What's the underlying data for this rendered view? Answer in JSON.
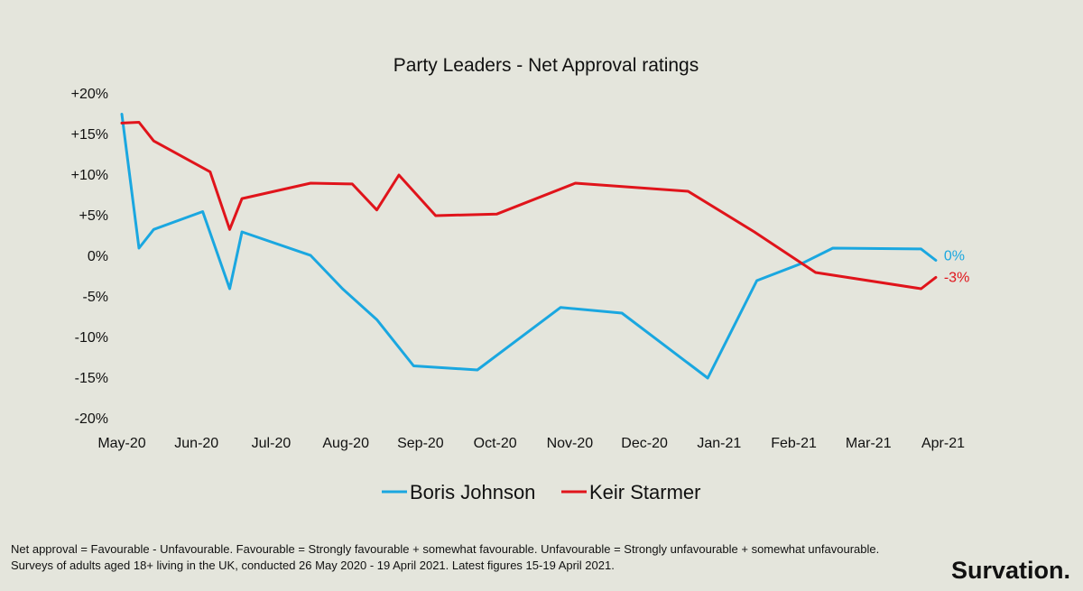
{
  "chart_data": {
    "type": "line",
    "title": "Party Leaders - Net Approval ratings",
    "x_ticks": [
      "May-20",
      "Jun-20",
      "Jul-20",
      "Aug-20",
      "Sep-20",
      "Oct-20",
      "Nov-20",
      "Dec-20",
      "Jan-21",
      "Feb-21",
      "Mar-21",
      "Apr-21"
    ],
    "y_ticks": [
      "+20%",
      "+15%",
      "+10%",
      "+5%",
      "0%",
      "-5%",
      "-10%",
      "-15%",
      "-20%"
    ],
    "ylim": [
      -20,
      20
    ],
    "grid": false,
    "legend_position": "bottom",
    "series": [
      {
        "name": "Boris Johnson",
        "color": "#1aa7e0",
        "end_label": "0%",
        "points": [
          {
            "x": "2020-05-01",
            "y": 17.5
          },
          {
            "x": "2020-05-08",
            "y": 1
          },
          {
            "x": "2020-05-14",
            "y": 3.3
          },
          {
            "x": "2020-06-03",
            "y": 5.5
          },
          {
            "x": "2020-06-14",
            "y": -4
          },
          {
            "x": "2020-06-19",
            "y": 3
          },
          {
            "x": "2020-07-17",
            "y": 0.1
          },
          {
            "x": "2020-07-30",
            "y": -4
          },
          {
            "x": "2020-08-13",
            "y": -7.8
          },
          {
            "x": "2020-08-28",
            "y": -13.5
          },
          {
            "x": "2020-09-23",
            "y": -14
          },
          {
            "x": "2020-10-27",
            "y": -6.3
          },
          {
            "x": "2020-11-21",
            "y": -7
          },
          {
            "x": "2020-12-26",
            "y": -15
          },
          {
            "x": "2021-01-15",
            "y": -3
          },
          {
            "x": "2021-02-03",
            "y": -0.8
          },
          {
            "x": "2021-02-15",
            "y": 1
          },
          {
            "x": "2021-03-23",
            "y": 0.9
          },
          {
            "x": "2021-03-29",
            "y": -0.5
          }
        ]
      },
      {
        "name": "Keir Starmer",
        "color": "#e0141b",
        "end_label": "-3%",
        "points": [
          {
            "x": "2020-05-01",
            "y": 16.4
          },
          {
            "x": "2020-05-08",
            "y": 16.5
          },
          {
            "x": "2020-05-14",
            "y": 14.2
          },
          {
            "x": "2020-06-06",
            "y": 10.4
          },
          {
            "x": "2020-06-14",
            "y": 3.3
          },
          {
            "x": "2020-06-19",
            "y": 7.1
          },
          {
            "x": "2020-07-17",
            "y": 9
          },
          {
            "x": "2020-08-03",
            "y": 8.9
          },
          {
            "x": "2020-08-13",
            "y": 5.7
          },
          {
            "x": "2020-08-22",
            "y": 10
          },
          {
            "x": "2020-09-06",
            "y": 5
          },
          {
            "x": "2020-10-01",
            "y": 5.2
          },
          {
            "x": "2020-11-02",
            "y": 9
          },
          {
            "x": "2020-12-18",
            "y": 8
          },
          {
            "x": "2021-01-14",
            "y": 3
          },
          {
            "x": "2021-02-08",
            "y": -2
          },
          {
            "x": "2021-03-23",
            "y": -4
          },
          {
            "x": "2021-03-29",
            "y": -2.6
          }
        ]
      }
    ]
  },
  "footnote": {
    "line1": "Net approval = Favourable - Unfavourable. Favourable = Strongly favourable + somewhat favourable. Unfavourable = Strongly unfavourable + somewhat unfavourable.",
    "line2": "Surveys of adults aged 18+ living in the UK, conducted 26 May 2020 - 19 April 2021.  Latest figures 15-19 April 2021."
  },
  "brand": "Survation."
}
